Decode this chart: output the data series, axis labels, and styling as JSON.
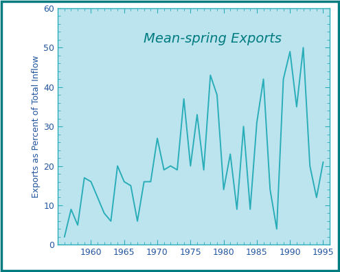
{
  "years": [
    1956,
    1957,
    1958,
    1959,
    1960,
    1961,
    1962,
    1963,
    1964,
    1965,
    1966,
    1967,
    1968,
    1969,
    1970,
    1971,
    1972,
    1973,
    1974,
    1975,
    1976,
    1977,
    1978,
    1979,
    1980,
    1981,
    1982,
    1983,
    1984,
    1985,
    1986,
    1987,
    1988,
    1989,
    1990,
    1991,
    1992,
    1993,
    1994,
    1995
  ],
  "values": [
    2,
    9,
    5,
    17,
    16,
    12,
    8,
    6,
    20,
    16,
    15,
    6,
    16,
    16,
    27,
    19,
    20,
    19,
    37,
    20,
    33,
    19,
    43,
    38,
    14,
    23,
    9,
    30,
    9,
    31,
    42,
    14,
    4,
    42,
    49,
    35,
    50,
    20,
    12,
    21
  ],
  "title": "Mean-spring Exports",
  "ylabel": "Exports as Percent of Total Inflow",
  "xlim": [
    1955,
    1996
  ],
  "ylim": [
    0,
    60
  ],
  "yticks": [
    0,
    10,
    20,
    30,
    40,
    50,
    60
  ],
  "xticks": [
    1960,
    1965,
    1970,
    1975,
    1980,
    1985,
    1990,
    1995
  ],
  "line_color": "#29adb8",
  "plot_bg_color": "#bce4ee",
  "fig_bg_color": "#ffffff",
  "outer_border_color": "#007b80",
  "spine_color": "#29adb8",
  "title_color": "#007b80",
  "label_color": "#2255a0",
  "tick_color": "#29adb8",
  "title_fontsize": 14,
  "label_fontsize": 9,
  "tick_fontsize": 9,
  "line_width": 1.4
}
